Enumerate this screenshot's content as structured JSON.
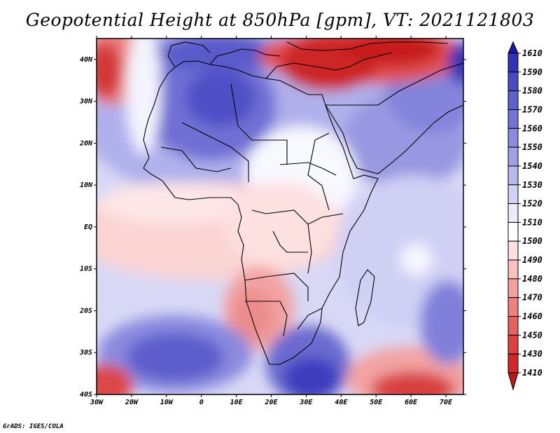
{
  "title": "Geopotential Height at 850hPa [gpm], VT: 2021121803",
  "credit": "GrADS: IGES/COLA",
  "map": {
    "lat_labels": [
      "40N",
      "30N",
      "20N",
      "10N",
      "EQ",
      "10S",
      "20S",
      "30S",
      "40S"
    ],
    "lon_labels": [
      "30W",
      "20W",
      "10W",
      "0",
      "10E",
      "20E",
      "30E",
      "40E",
      "50E",
      "60E",
      "70E"
    ],
    "lon_range": [
      -30,
      75
    ],
    "lat_range": [
      -40,
      45
    ],
    "projection": "latlon",
    "region": "Africa"
  },
  "colorbar": {
    "labels": [
      "1610",
      "1590",
      "1580",
      "1570",
      "1560",
      "1550",
      "1540",
      "1530",
      "1520",
      "1510",
      "1500",
      "1490",
      "1480",
      "1470",
      "1460",
      "1450",
      "1430",
      "1410"
    ],
    "colors": [
      "#1a1a9e",
      "#3333b8",
      "#4a4ac4",
      "#5f5fcd",
      "#7474d6",
      "#8a8ade",
      "#a0a0e6",
      "#b8b8ee",
      "#d2d2f6",
      "#ebebfc",
      "#ffffff",
      "#fde0e0",
      "#f9c0c0",
      "#f4a0a0",
      "#ee8080",
      "#e66060",
      "#dc4040",
      "#cf2828",
      "#b81818"
    ]
  }
}
